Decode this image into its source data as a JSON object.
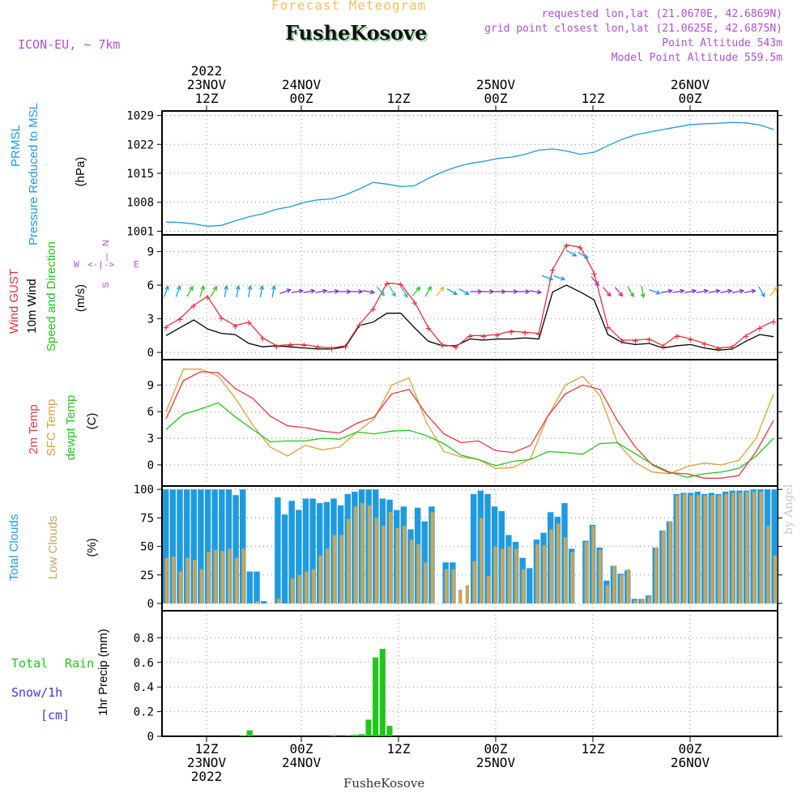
{
  "header": {
    "title": "Forecast Meteogram",
    "location": "FusheKosove",
    "model": "ICON-EU, ~ 7km",
    "requested": "requested lon,lat (21.0670E, 42.6869N)",
    "closest": "grid point closest lon,lat (21.0625E, 42.6875N)",
    "altitude": "Point Altitude 543m",
    "model_altitude": "Model Point Altitude 559.5m"
  },
  "footer": {
    "location": "FusheKosove",
    "credit": "by Angel"
  },
  "colors": {
    "pressure": "#1e9be0",
    "gust": "#e8323c",
    "wind": "#000000",
    "dir": "#21c61a",
    "temp": "#e83a40",
    "sfc": "#d9a23a",
    "dew": "#21c61a",
    "total": "#1e9be0",
    "low": "#c9a55a",
    "rain": "#21c61a",
    "snow": "#3b3be0",
    "purple": "#b050d0",
    "title": "#f0c060"
  },
  "chart_data": [
    {
      "id": "pressure",
      "type": "line",
      "ylabels": [
        "PRMSL",
        "Pressure Reduced to MSL"
      ],
      "unit": "(hPa)",
      "yticks": [
        1001,
        1008,
        1015,
        1022,
        1029
      ],
      "ylim": [
        1000.5,
        1029.5
      ],
      "series": [
        {
          "values": [
            1003.2,
            1003.1,
            1002.8,
            1002.2,
            1002.4,
            1003.5,
            1004.5,
            1005.2,
            1006.3,
            1006.9,
            1008.0,
            1008.6,
            1008.8,
            1009.8,
            1011.2,
            1012.8,
            1012.4,
            1011.8,
            1012.0,
            1013.8,
            1015.3,
            1016.5,
            1017.4,
            1017.9,
            1018.6,
            1018.9,
            1019.6,
            1020.6,
            1020.9,
            1020.4,
            1019.6,
            1020.1,
            1021.7,
            1023.2,
            1024.3,
            1025.0,
            1025.6,
            1026.2,
            1026.8,
            1027.0,
            1027.1,
            1027.3,
            1027.2,
            1026.7,
            1025.6
          ]
        }
      ]
    },
    {
      "id": "wind",
      "type": "line",
      "ylabels": [
        "Wind GUST",
        "10m Wind",
        "Speed and Direction"
      ],
      "unit": "(m/s)",
      "yticks": [
        0,
        3,
        6,
        9
      ],
      "ylim": [
        -0.5,
        10.2
      ],
      "compass": {
        "n": "N",
        "s": "S",
        "w": "W",
        "e": "E"
      },
      "series": [
        {
          "name": "Wind GUST",
          "values": [
            2.3,
            3.0,
            4.2,
            5.0,
            3.1,
            2.4,
            2.7,
            1.3,
            0.6,
            0.7,
            0.7,
            0.5,
            0.4,
            0.6,
            2.5,
            3.9,
            6.2,
            6.1,
            4.5,
            2.2,
            0.7,
            0.5,
            1.5,
            1.5,
            1.6,
            1.9,
            1.8,
            1.7,
            7.4,
            9.6,
            9.4,
            7.1,
            2.3,
            1.1,
            1.1,
            1.2,
            0.6,
            1.5,
            1.2,
            0.8,
            0.4,
            0.5,
            1.5,
            2.2,
            2.8
          ]
        },
        {
          "name": "10m Wind",
          "values": [
            1.5,
            2.2,
            2.9,
            2.1,
            1.7,
            1.6,
            0.8,
            0.5,
            0.6,
            0.5,
            0.4,
            0.3,
            0.3,
            0.5,
            2.4,
            2.7,
            3.5,
            3.5,
            2.2,
            1.0,
            0.6,
            0.6,
            1.2,
            1.1,
            1.2,
            1.2,
            1.3,
            1.2,
            5.4,
            6.0,
            5.4,
            4.7,
            1.6,
            0.9,
            0.7,
            0.8,
            0.4,
            0.6,
            0.7,
            0.4,
            0.2,
            0.3,
            1.0,
            1.6,
            1.4
          ]
        }
      ]
    },
    {
      "id": "temp",
      "type": "line",
      "ylabels": [
        "2m Temp",
        "SFC Temp",
        "dewpt Temp"
      ],
      "unit": "(C)",
      "yticks": [
        0,
        3,
        6,
        9
      ],
      "ylim": [
        -2.2,
        11.5
      ],
      "series": [
        {
          "name": "2m Temp",
          "values": [
            5.2,
            9.5,
            10.5,
            10.4,
            8.6,
            7.5,
            5.5,
            4.4,
            4.2,
            3.8,
            3.6,
            4.7,
            5.4,
            8.0,
            8.5,
            5.7,
            3.5,
            2.5,
            2.7,
            1.6,
            1.4,
            2.2,
            5.5,
            8.0,
            9.0,
            8.5,
            5.0,
            2.1,
            0.0,
            -0.9,
            -1.0,
            -1.5,
            -1.5,
            -1.2,
            1.5,
            5.0
          ]
        },
        {
          "name": "SFC Temp",
          "values": [
            6.0,
            10.8,
            10.8,
            10.0,
            7.5,
            4.5,
            2.0,
            1.0,
            2.2,
            1.7,
            2.0,
            3.7,
            5.2,
            9.0,
            9.8,
            4.8,
            1.5,
            0.9,
            0.6,
            -0.4,
            -0.3,
            0.7,
            5.5,
            9.0,
            10.0,
            7.8,
            2.5,
            0.3,
            -0.8,
            -1.0,
            -0.2,
            0.2,
            0.0,
            0.5,
            3.0,
            8.0
          ]
        },
        {
          "name": "dewpt Temp",
          "values": [
            4.0,
            5.7,
            6.3,
            7.0,
            5.4,
            4.0,
            2.6,
            2.7,
            2.7,
            3.0,
            2.9,
            3.7,
            3.5,
            3.8,
            3.9,
            3.3,
            2.4,
            1.1,
            0.6,
            -0.1,
            0.4,
            0.6,
            1.5,
            1.4,
            1.2,
            2.4,
            2.5,
            1.3,
            0.1,
            -0.8,
            -1.4,
            -1.0,
            -0.8,
            -0.4,
            1.0,
            3.0
          ]
        }
      ]
    },
    {
      "id": "clouds",
      "type": "bar",
      "ylabels": [
        "Total Clouds",
        "Low Clouds"
      ],
      "unit": "(%)",
      "yticks": [
        0,
        25,
        50,
        75,
        100
      ],
      "ylim": [
        -5,
        103
      ],
      "series": [
        {
          "name": "Total Clouds",
          "values": [
            100,
            100,
            100,
            100,
            100,
            100,
            100,
            100,
            100,
            100,
            95,
            100,
            28,
            28,
            2,
            0,
            93,
            78,
            90,
            82,
            92,
            92,
            88,
            89,
            92,
            86,
            96,
            98,
            100,
            100,
            100,
            92,
            91,
            82,
            85,
            65,
            84,
            72,
            85,
            0,
            36,
            36,
            0,
            0,
            96,
            99,
            96,
            85,
            81,
            60,
            54,
            40,
            31,
            56,
            62,
            80,
            76,
            88,
            48,
            0,
            55,
            69,
            49,
            20,
            33,
            26,
            29,
            4,
            4,
            7,
            49,
            64,
            72,
            96,
            97,
            97,
            98,
            96,
            97,
            96,
            98,
            99,
            99,
            99,
            100,
            100,
            100,
            100
          ]
        },
        {
          "name": "Low Clouds",
          "values": [
            40,
            41,
            28,
            40,
            38,
            30,
            45,
            47,
            46,
            48,
            40,
            48,
            0,
            2,
            0,
            0,
            4,
            0,
            22,
            25,
            28,
            30,
            42,
            48,
            60,
            60,
            74,
            85,
            88,
            86,
            75,
            68,
            80,
            66,
            68,
            56,
            52,
            36,
            80,
            0,
            30,
            30,
            12,
            16,
            37,
            75,
            24,
            50,
            48,
            50,
            48,
            30,
            0,
            52,
            51,
            65,
            70,
            58,
            45,
            0,
            54,
            68,
            47,
            16,
            33,
            25,
            30,
            3,
            4,
            6,
            49,
            64,
            72,
            95,
            96,
            95,
            95,
            95,
            95,
            95,
            96,
            97,
            97,
            98,
            98,
            98,
            68,
            42
          ]
        }
      ]
    },
    {
      "id": "precip",
      "type": "bar",
      "ylabels": [
        "Total",
        "Rain",
        "Snow/1h",
        "[cm]"
      ],
      "unit": "1hr Precip (mm)",
      "yticks": [
        0,
        0.2,
        0.4,
        0.6,
        0.8
      ],
      "ylim": [
        0,
        0.98
      ],
      "series": [
        {
          "name": "Total",
          "values": [
            0,
            0,
            0,
            0,
            0,
            0,
            0,
            0,
            0,
            0,
            0,
            0.005,
            0.048,
            0,
            0,
            0,
            0,
            0,
            0,
            0,
            0,
            0,
            0,
            0,
            0.01,
            0,
            0.003,
            0.012,
            0.018,
            0.135,
            0.64,
            0.71,
            0.085,
            0,
            0,
            0,
            0,
            0,
            0,
            0,
            0,
            0,
            0,
            0,
            0,
            0,
            0,
            0,
            0,
            0,
            0,
            0,
            0,
            0,
            0,
            0,
            0,
            0,
            0,
            0,
            0,
            0,
            0,
            0,
            0,
            0,
            0,
            0,
            0,
            0,
            0,
            0,
            0,
            0,
            0,
            0,
            0,
            0,
            0,
            0,
            0,
            0,
            0,
            0,
            0,
            0,
            0,
            0
          ]
        }
      ]
    }
  ],
  "time_axis": {
    "top": [
      {
        "lines": [
          "2022",
          "23NOV",
          "12Z"
        ]
      },
      {
        "lines": [
          "24NOV",
          "00Z"
        ]
      },
      {
        "lines": [
          "12Z"
        ]
      },
      {
        "lines": [
          "25NOV",
          "00Z"
        ]
      },
      {
        "lines": [
          "12Z"
        ]
      },
      {
        "lines": [
          "26NOV",
          "00Z"
        ]
      }
    ],
    "bottom": [
      {
        "lines": [
          "12Z",
          "23NOV",
          "2022"
        ]
      },
      {
        "lines": [
          "00Z",
          "24NOV"
        ]
      },
      {
        "lines": [
          "12Z"
        ]
      },
      {
        "lines": [
          "00Z",
          "25NOV"
        ]
      },
      {
        "lines": [
          "12Z"
        ]
      },
      {
        "lines": [
          "00Z",
          "26NOV"
        ]
      }
    ]
  },
  "wind_arrows": {
    "colors": [
      "#1e9be0",
      "#1e9be0",
      "#21c61a",
      "#21c61a",
      "#21c61a",
      "#1e9be0",
      "#1e9be0",
      "#1e9be0",
      "#1e9be0",
      "#1e9be0",
      "#7a30d0",
      "#7a30d0",
      "#7a30d0",
      "#7a30d0",
      "#7a30d0",
      "#7a30d0",
      "#7a30d0",
      "#7a30d0",
      "#1ec0c0",
      "#1ec0c0",
      "#1ec0c0",
      "#21c61a",
      "#21c61a",
      "#e0c020",
      "#1e9be0",
      "#1e9be0",
      "#7a30d0",
      "#7a30d0",
      "#7a30d0",
      "#7a30d0",
      "#7a30d0",
      "#7a30d0",
      "#1e9be0",
      "#1e9be0",
      "#1e9be0",
      "#1e9be0",
      "#e0208a",
      "#e0208a",
      "#e0208a",
      "#21c61a",
      "#21c61a",
      "#1e9be0",
      "#7a30d0",
      "#7a30d0",
      "#7a30d0",
      "#7a30d0",
      "#7a30d0",
      "#7a30d0",
      "#7a30d0",
      "#7a30d0",
      "#1e9be0",
      "#e0c020"
    ],
    "dirs": [
      200,
      200,
      210,
      200,
      210,
      190,
      190,
      190,
      190,
      190,
      250,
      260,
      260,
      260,
      265,
      270,
      270,
      280,
      320,
      330,
      330,
      220,
      210,
      220,
      300,
      300,
      270,
      270,
      270,
      270,
      270,
      280,
      290,
      290,
      300,
      300,
      320,
      320,
      320,
      330,
      350,
      290,
      260,
      260,
      260,
      260,
      260,
      260,
      260,
      260,
      330,
      220
    ]
  }
}
